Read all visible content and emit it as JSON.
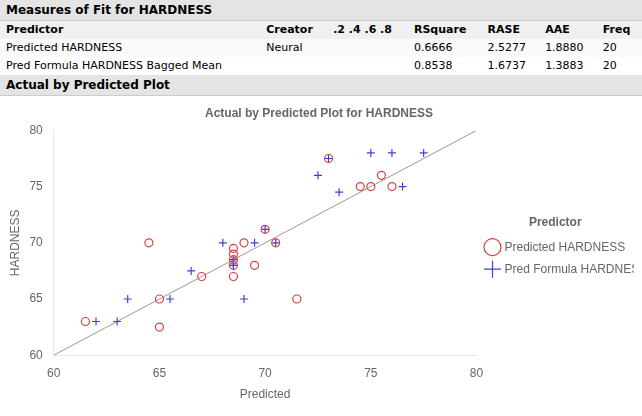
{
  "chart_data": {
    "type": "scatter",
    "title": "Actual by Predicted Plot for HARDNESS",
    "annotations": [
      "Measures of Fit for HARDNESS",
      "Actual by Predicted Plot"
    ],
    "table": {
      "headers": [
        "Predictor",
        "Creator",
        ".2 .4 .6 .8",
        "RSquare",
        "RASE",
        "AAE",
        "Freq"
      ],
      "rows": [
        [
          "Predicted HARDNESS",
          "Neural",
          null,
          "0.6666",
          "2.5277",
          "1.8880",
          "20"
        ],
        [
          "Pred Formula HARDNESS Bagged Mean",
          null,
          null,
          "0.8538",
          "1.6737",
          "1.3883",
          "20"
        ]
      ]
    },
    "xlabel": "Predicted",
    "ylabel": "HARDNESS",
    "legend_title": "Predictor",
    "legend": "right",
    "grid": false,
    "xlim": [
      60,
      80
    ],
    "ylim": [
      60,
      80
    ],
    "xticks": [
      60,
      65,
      70,
      75,
      80
    ],
    "yticks": [
      60,
      65,
      70,
      75,
      80
    ],
    "series": [
      {
        "type": "line",
        "color": "#999999",
        "values": [
          [
            60,
            60
          ],
          [
            80,
            80
          ]
        ]
      },
      {
        "name": "Predicted HARDNESS",
        "color": "#d94040",
        "marker": "circle",
        "values": [
          [
            61.5,
            63.0
          ],
          [
            64.5,
            70.0
          ],
          [
            65.0,
            65.0
          ],
          [
            65.0,
            62.5
          ],
          [
            67.0,
            67.0
          ],
          [
            68.5,
            69.0
          ],
          [
            68.5,
            69.5
          ],
          [
            68.5,
            68.5
          ],
          [
            68.5,
            68.0
          ],
          [
            68.5,
            67.0
          ],
          [
            69.0,
            70.0
          ],
          [
            69.5,
            68.0
          ],
          [
            70.0,
            71.2
          ],
          [
            70.5,
            70.0
          ],
          [
            71.5,
            65.0
          ],
          [
            73.0,
            77.5
          ],
          [
            74.5,
            75.0
          ],
          [
            75.0,
            75.0
          ],
          [
            75.5,
            76.0
          ],
          [
            76.0,
            75.0
          ]
        ]
      },
      {
        "name": "Pred Formula HARDNESS Bagged Mean",
        "color": "#4040d9",
        "marker": "plus",
        "values": [
          [
            62.0,
            63.0
          ],
          [
            63.0,
            63.0
          ],
          [
            63.5,
            65.0
          ],
          [
            65.5,
            65.0
          ],
          [
            66.5,
            67.5
          ],
          [
            68.0,
            70.0
          ],
          [
            68.5,
            68.5
          ],
          [
            68.5,
            68.0
          ],
          [
            68.5,
            68.0
          ],
          [
            69.0,
            65.0
          ],
          [
            69.5,
            70.0
          ],
          [
            70.0,
            71.2
          ],
          [
            70.5,
            70.0
          ],
          [
            72.5,
            76.0
          ],
          [
            73.0,
            77.5
          ],
          [
            73.5,
            74.5
          ],
          [
            75.0,
            78.0
          ],
          [
            76.0,
            78.0
          ],
          [
            76.5,
            75.0
          ],
          [
            77.5,
            78.0
          ]
        ]
      }
    ]
  }
}
